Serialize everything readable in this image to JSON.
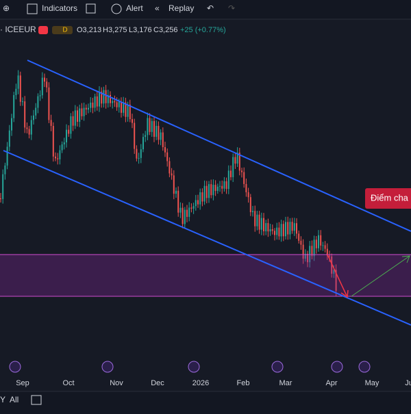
{
  "toolbar": {
    "indicators": "Indicators",
    "alert": "Alert",
    "replay": "Replay"
  },
  "legend": {
    "symbol": "· ICEEUR",
    "interval": "D",
    "open": "O3,213",
    "high": "H3,275",
    "low": "L3,176",
    "close": "C3,256",
    "change": "+25 (+0.77%)"
  },
  "time_axis": [
    "Sep",
    "Oct",
    "Nov",
    "Dec",
    "2026",
    "Feb",
    "Mar",
    "Apr",
    "May",
    "Ju"
  ],
  "annotation": "Điểm cha",
  "bottom_bar": {
    "range": "Y",
    "all": "All"
  }
}
